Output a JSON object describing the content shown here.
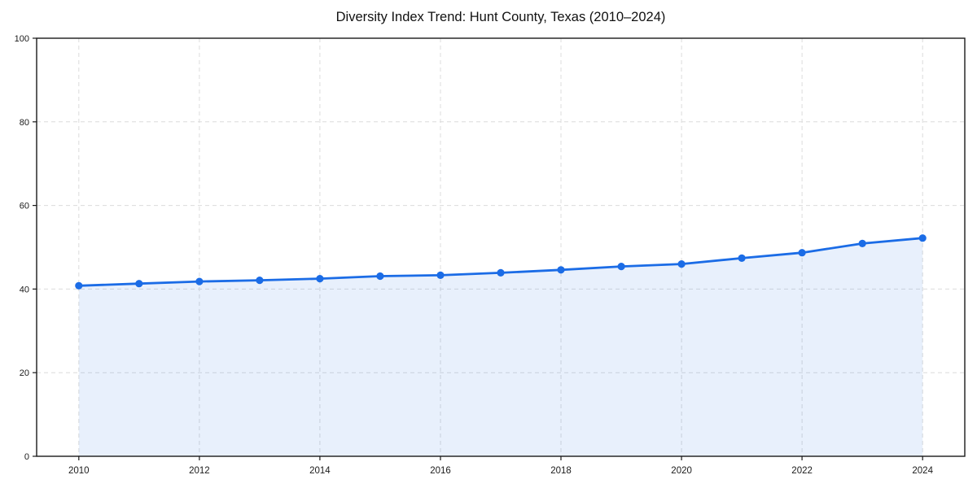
{
  "chart_data": {
    "type": "line",
    "title": "Diversity Index Trend: Hunt County, Texas (2010–2024)",
    "x": [
      2010,
      2011,
      2012,
      2013,
      2014,
      2015,
      2016,
      2017,
      2018,
      2019,
      2020,
      2021,
      2022,
      2023,
      2024
    ],
    "series": [
      {
        "name": "Diversity Index",
        "values": [
          40.8,
          41.3,
          41.8,
          42.1,
          42.5,
          43.1,
          43.3,
          43.9,
          44.6,
          45.4,
          46.0,
          47.4,
          48.7,
          50.9,
          52.2
        ]
      }
    ],
    "xlabel": "",
    "ylabel": "",
    "xlim": [
      2009.3,
      2024.7
    ],
    "ylim": [
      0,
      100
    ],
    "xticks": [
      2010,
      2012,
      2014,
      2016,
      2018,
      2020,
      2022,
      2024
    ],
    "yticks": [
      0,
      20,
      40,
      60,
      80,
      100
    ],
    "grid": true,
    "grid_style": "dashed",
    "legend": "none",
    "marker": "circle",
    "area_fill": true
  },
  "colors": {
    "line": "#1b6ce6",
    "fill": "rgba(27,108,230,0.10)",
    "grid": "#dcdcdc",
    "axis": "#1a1a1a",
    "text": "#1a1a1a",
    "background": "#ffffff"
  }
}
